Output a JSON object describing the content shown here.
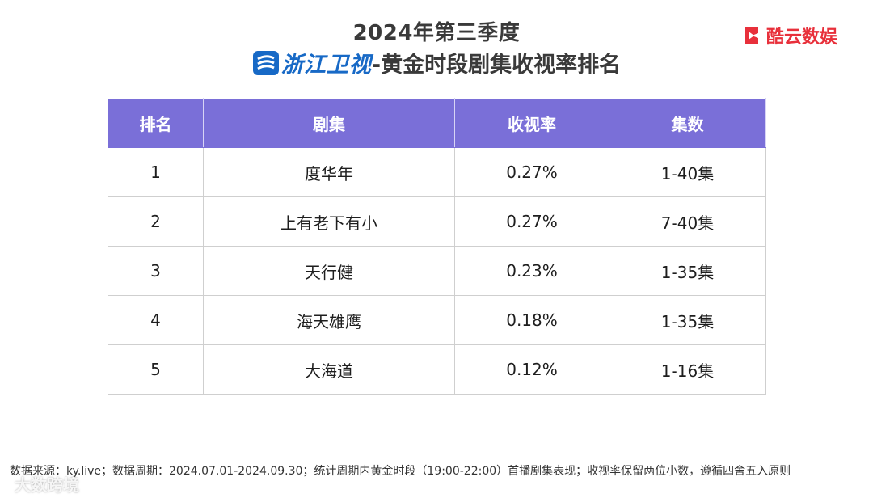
{
  "header": {
    "title_line1": "2024年第三季度",
    "channel_name": "浙江卫视",
    "title_suffix": "-黄金时段剧集收视率排名",
    "brand": "酷云数娱"
  },
  "colors": {
    "header_bg": "#7a6fd8",
    "brand": "#e8303b",
    "channel": "#1769c6"
  },
  "table": {
    "columns": [
      "排名",
      "剧集",
      "收视率",
      "集数"
    ],
    "rows": [
      {
        "rank": "1",
        "title": "度华年",
        "rating": "0.27%",
        "episodes": "1-40集"
      },
      {
        "rank": "2",
        "title": "上有老下有小",
        "rating": "0.27%",
        "episodes": "7-40集"
      },
      {
        "rank": "3",
        "title": "天行健",
        "rating": "0.23%",
        "episodes": "1-35集"
      },
      {
        "rank": "4",
        "title": "海天雄鹰",
        "rating": "0.18%",
        "episodes": "1-35集"
      },
      {
        "rank": "5",
        "title": "大海道",
        "rating": "0.12%",
        "episodes": "1-16集"
      }
    ]
  },
  "footer": {
    "note": "数据来源：ky.live；数据周期：2024.07.01-2024.09.30；统计周期内黄金时段（19:00-22:00）首播剧集表现；收视率保留两位小数，遵循四舍五入原则"
  },
  "watermark": {
    "text": "大数跨境"
  },
  "icons": {
    "channel_logo": "zhejiang-tv-logo-icon",
    "brand_logo": "kuyun-play-logo-icon"
  }
}
